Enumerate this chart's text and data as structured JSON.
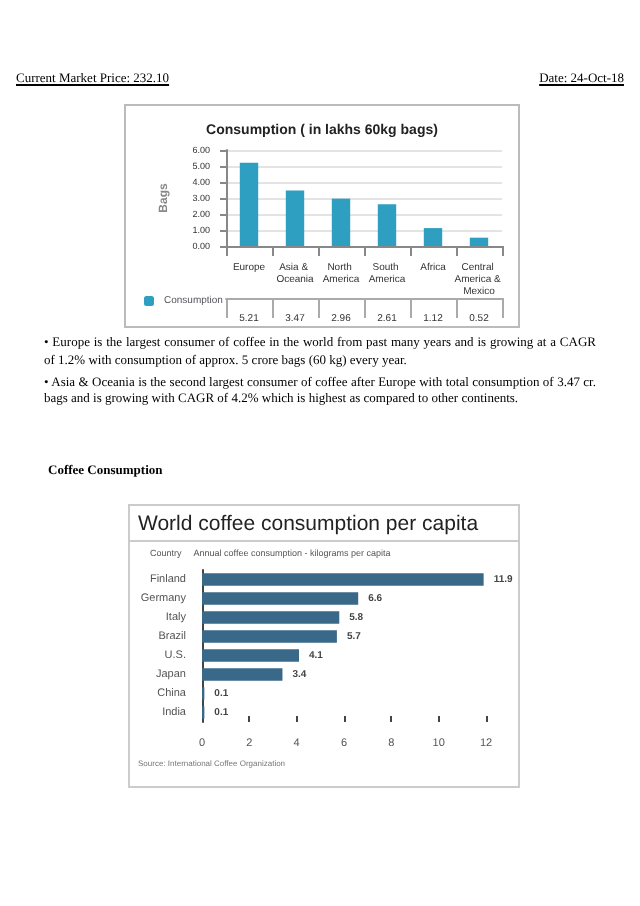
{
  "chart_data": [
    {
      "type": "bar",
      "title": "Consumption ( in lakhs 60kg bags)",
      "ylabel": "Bags",
      "categories": [
        "Europe",
        "Asia & Oceania",
        "North America",
        "South America",
        "Africa",
        "Central America & Mexico"
      ],
      "series": [
        {
          "name": "Consumption",
          "color": "#2e9fc0",
          "values": [
            5.21,
            3.47,
            2.96,
            2.61,
            1.12,
            0.52
          ]
        }
      ],
      "ylim": [
        0,
        6
      ],
      "yticks": [
        {
          "value": 0,
          "label": "0.00"
        },
        {
          "value": 1,
          "label": "1.00"
        },
        {
          "value": 2,
          "label": "2.00"
        },
        {
          "value": 3,
          "label": "3.00"
        },
        {
          "value": 4,
          "label": "4.00"
        },
        {
          "value": 5,
          "label": "5.00"
        },
        {
          "value": 6,
          "label": "6.00"
        }
      ],
      "grid": "y",
      "data_labels": true,
      "legend": "bottom left",
      "annotations": [
        "Current Market Price: 232.10",
        "Date: 24-Oct-18",
        "• Europe is the largest consumer of coffee in the world from past many years and is growing at a CAGR of 1.2% with consumption of approx. 5 crore bags (60 kg) every year.",
        "• Asia & Oceania is the second largest consumer of coffee after Europe with total consumption of 3.47 cr. bags and is growing with CAGR of 4.2% which is highest as compared to other continents."
      ]
    },
    {
      "type": "bar",
      "orientation": "horizontal",
      "title": "World coffee consumption per capita",
      "ylabel": "Country",
      "xlabel": "Annual coffee consumption - kilograms per capita",
      "categories": [
        "Finland",
        "Germany",
        "Italy",
        "Brazil",
        "U.S.",
        "Japan",
        "China",
        "India"
      ],
      "values": [
        11.9,
        6.6,
        5.8,
        5.7,
        4.1,
        3.4,
        0.1,
        0.1
      ],
      "color": "#3a6889",
      "xlim": [
        0,
        12
      ],
      "xticks": [
        0,
        2,
        4,
        6,
        8,
        10,
        12
      ],
      "data_labels": true,
      "annotations": [
        "Coffee Consumption",
        "Source: International Coffee Organization"
      ]
    }
  ]
}
